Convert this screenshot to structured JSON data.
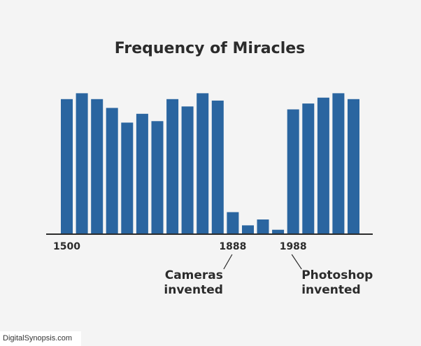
{
  "chart_data": {
    "type": "bar",
    "title": "Frequency of Miracles",
    "xlabel": "",
    "ylabel": "",
    "values": [
      92,
      96,
      92,
      86,
      76,
      82,
      77,
      92,
      87,
      96,
      91,
      15,
      6,
      10,
      3,
      85,
      89,
      93,
      96,
      92
    ],
    "tick_labels": [
      {
        "bar_index": 0,
        "label": "1500"
      },
      {
        "bar_index": 11,
        "label": "1888"
      },
      {
        "bar_index": 15,
        "label": "1988"
      }
    ],
    "annotations": [
      {
        "bar_index": 11,
        "lines": [
          "Cameras",
          "invented"
        ]
      },
      {
        "bar_index": 15,
        "lines": [
          "Photoshop",
          "invented"
        ]
      }
    ],
    "ylim": [
      0,
      100
    ],
    "grid": false,
    "bar_color": "#2a65a0",
    "axis_color": "#2b2b2b"
  },
  "footer": {
    "credit": "DigitalSynopsis.com"
  }
}
